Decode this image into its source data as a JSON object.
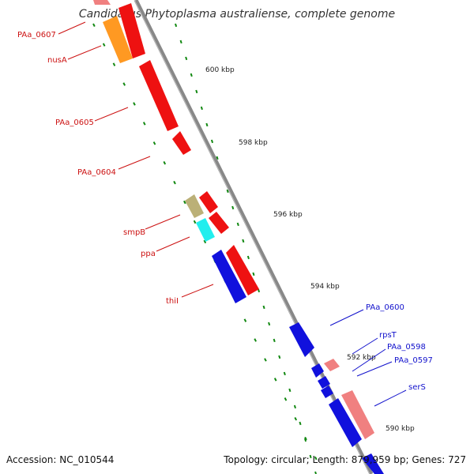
{
  "title": "Candidatus Phytoplasma australiense, complete genome",
  "footer": {
    "accession": "Accession: NC_010544",
    "summary": "Topology: circular; Length: 879,959 bp; Genes: 727"
  },
  "colors": {
    "forward_gene": "#ee1111",
    "reverse_gene": "#1111dd",
    "forward_label": "#cc1111",
    "reverse_label": "#1111cc",
    "tick": "#118811",
    "backbone": "#888888"
  },
  "ticks": [
    {
      "label": "600 kbp"
    },
    {
      "label": "598 kbp"
    },
    {
      "label": "596 kbp"
    },
    {
      "label": "594 kbp"
    },
    {
      "label": "592 kbp"
    },
    {
      "label": "590 kbp"
    }
  ],
  "forward_labels": [
    {
      "text": "PAa_0607"
    },
    {
      "text": "nusA"
    },
    {
      "text": "PAa_0605"
    },
    {
      "text": "PAa_0604"
    },
    {
      "text": "smpB"
    },
    {
      "text": "ppa"
    },
    {
      "text": "thiI"
    }
  ],
  "reverse_labels": [
    {
      "text": "PAa_0600"
    },
    {
      "text": "rpsT"
    },
    {
      "text": "PAa_0598"
    },
    {
      "text": "PAa_0597"
    },
    {
      "text": "serS"
    }
  ]
}
